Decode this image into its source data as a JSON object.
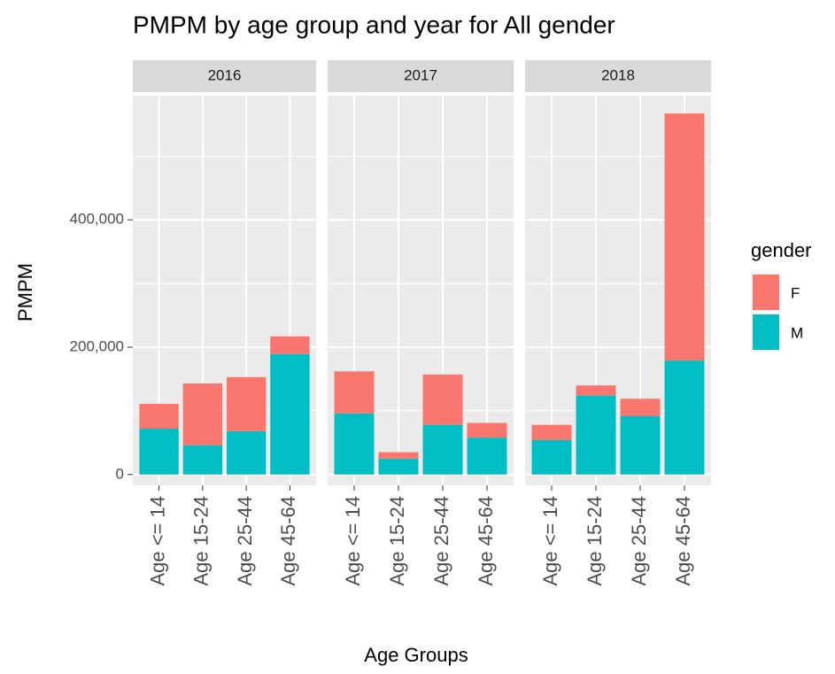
{
  "chart_data": {
    "type": "bar",
    "title": "PMPM by age group and year for All gender",
    "x_label": "Age Groups",
    "y_label": "PMPM",
    "legend_title": "gender",
    "series": [
      {
        "name": "F",
        "color": "#f8766d"
      },
      {
        "name": "M",
        "color": "#00bfc4"
      }
    ],
    "facets": [
      {
        "label": "2016",
        "categories": [
          "Age <= 14",
          "Age 15-24",
          "Age 25-44",
          "Age 45-64"
        ],
        "values": [
          [
            39000,
            97000,
            85000,
            28000
          ],
          [
            72000,
            46000,
            68000,
            189000
          ]
        ]
      },
      {
        "label": "2017",
        "categories": [
          "Age <= 14",
          "Age 15-24",
          "Age 25-44",
          "Age 45-64"
        ],
        "values": [
          [
            66000,
            10000,
            79000,
            23000
          ],
          [
            96000,
            25000,
            78000,
            58000
          ]
        ]
      },
      {
        "label": "2018",
        "categories": [
          "Age <= 14",
          "Age 15-24",
          "Age 25-44",
          "Age 45-64"
        ],
        "values": [
          [
            24000,
            16000,
            27000,
            388000
          ],
          [
            54000,
            124000,
            92000,
            179000
          ]
        ]
      }
    ],
    "ylim": [
      -17000,
      595000
    ],
    "yticks": [
      0,
      {
        "value": 200000,
        "label": "200,000"
      },
      {
        "value": 400000,
        "label": "400,000"
      }
    ],
    "minor_yticks": [
      100000,
      300000,
      500000
    ],
    "grid": true,
    "legend": "right"
  }
}
